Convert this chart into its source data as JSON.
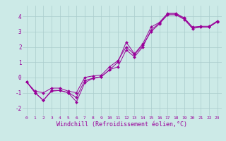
{
  "background_color": "#cceae7",
  "grid_color": "#aacccc",
  "line_color": "#990099",
  "xlabel": "Windchill (Refroidissement éolien,°C)",
  "xlabel_fontsize": 6,
  "ylabel_ticks": [
    -2,
    -1,
    0,
    1,
    2,
    3,
    4
  ],
  "xlim": [
    -0.5,
    23.5
  ],
  "ylim": [
    -2.5,
    4.7
  ],
  "line1_x": [
    0,
    1,
    2,
    3,
    4,
    5,
    6,
    7,
    8,
    9,
    10,
    11,
    12,
    13,
    14,
    15,
    16,
    17,
    18,
    19,
    20,
    21,
    22,
    23
  ],
  "line1_y": [
    -0.3,
    -1.0,
    -1.5,
    -0.9,
    -0.85,
    -1.0,
    -1.3,
    -0.2,
    -0.05,
    0.05,
    0.5,
    1.0,
    2.3,
    1.55,
    2.2,
    3.3,
    3.6,
    4.2,
    4.2,
    3.9,
    3.3,
    3.35,
    3.35,
    3.7
  ],
  "line2_x": [
    0,
    1,
    2,
    3,
    4,
    5,
    6,
    7,
    8,
    9,
    10,
    11,
    12,
    13,
    14,
    15,
    16,
    17,
    18,
    19,
    20,
    21,
    22,
    23
  ],
  "line2_y": [
    -0.3,
    -1.0,
    -1.5,
    -0.85,
    -0.85,
    -1.0,
    -1.6,
    -0.35,
    -0.05,
    0.05,
    0.5,
    0.7,
    1.8,
    1.35,
    2.0,
    3.1,
    3.55,
    4.15,
    4.15,
    3.85,
    3.25,
    3.3,
    3.3,
    3.65
  ],
  "line3_x": [
    0,
    1,
    2,
    3,
    4,
    5,
    6,
    7,
    8,
    9,
    10,
    11,
    12,
    13,
    14,
    15,
    16,
    17,
    18,
    19,
    20,
    21,
    22,
    23
  ],
  "line3_y": [
    -0.3,
    -0.9,
    -1.0,
    -0.7,
    -0.7,
    -0.9,
    -1.0,
    0.0,
    0.1,
    0.15,
    0.7,
    1.1,
    2.0,
    1.5,
    2.1,
    3.0,
    3.5,
    4.1,
    4.1,
    3.8,
    3.2,
    3.3,
    3.3,
    3.65
  ],
  "xtick_labels": [
    "0",
    "1",
    "2",
    "3",
    "4",
    "5",
    "6",
    "7",
    "8",
    "9",
    "10",
    "11",
    "12",
    "13",
    "14",
    "15",
    "16",
    "17",
    "18",
    "19",
    "20",
    "21",
    "22",
    "23"
  ],
  "xtick_fontsize": 4.5,
  "ytick_fontsize": 5.5
}
